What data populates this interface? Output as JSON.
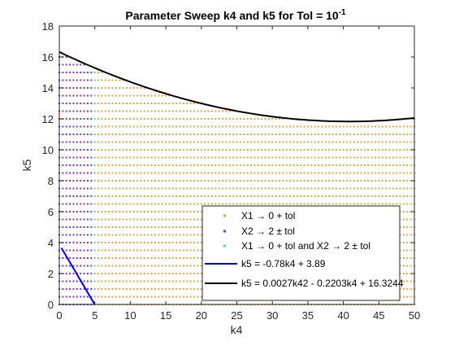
{
  "chart_data": {
    "type": "scatter",
    "title": "Parameter Sweep k4 and k5 for Tol = 10",
    "title_exponent": "-1",
    "xlabel": "k4",
    "ylabel": "k5",
    "xlim": [
      0,
      50
    ],
    "ylim": [
      0,
      18
    ],
    "xticks": [
      0,
      5,
      10,
      15,
      20,
      25,
      30,
      35,
      40,
      45,
      50
    ],
    "yticks": [
      0,
      2,
      4,
      6,
      8,
      10,
      12,
      14,
      16,
      18
    ],
    "grid": false,
    "legend_position": "bottom-right",
    "sweep": {
      "k4_start": 0,
      "k4_end": 50,
      "k4_step": 0.5,
      "k5_start": 0,
      "k5_end": 16,
      "k5_step": 0.5
    },
    "series": [
      {
        "name": "X1 → 0 + tol",
        "color": "#f5a130",
        "region": "k4 from 5 to 50, k5 below the black curve"
      },
      {
        "name": "X2 → 2 ± tol",
        "color": "#8a2be2",
        "region": "k4 from 0 to 4.5, k5 below the black curve"
      },
      {
        "name": "X1 → 0 + tol and X2 → 2 ± tol",
        "color": "#3fe0c8",
        "region": "k4 = 5, k5 from 0 to 15"
      }
    ],
    "fits": [
      {
        "name": "k5 = -0.78k4 + 3.89",
        "color": "#0000ff",
        "slope": -0.78,
        "intercept": 3.89,
        "k4_range": [
          0.3,
          5
        ]
      },
      {
        "name": "k5 = 0.0027k4^2 - 0.2203k4 + 16.3244",
        "color": "#000000",
        "a": 0.0027,
        "b": -0.2203,
        "c": 16.3244,
        "k4_range": [
          0,
          50
        ]
      }
    ],
    "legend": {
      "entries": [
        {
          "marker": "dot",
          "color": "#f5a130",
          "text": "X1 → 0 + tol"
        },
        {
          "marker": "dot",
          "color": "#8a2be2",
          "text": "X2 → 2 ± tol"
        },
        {
          "marker": "dot",
          "color": "#3fe0c8",
          "text": "X1 → 0 + tol and X2 → 2 ± tol"
        },
        {
          "marker": "line",
          "color": "#0000ff",
          "text": "k5 = -0.78k4 + 3.89"
        },
        {
          "marker": "line",
          "color": "#000000",
          "text": "k5 = 0.0027k42 - 0.2203k4 + 16.3244"
        }
      ]
    }
  }
}
